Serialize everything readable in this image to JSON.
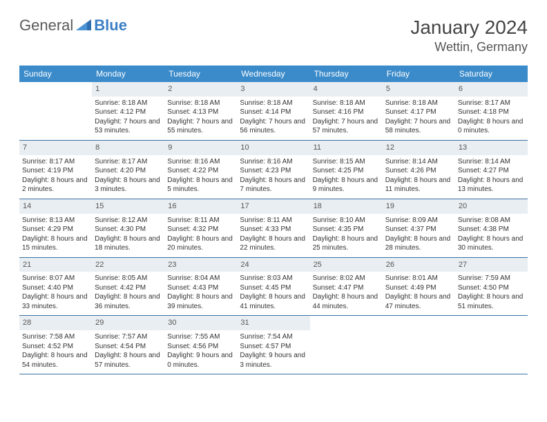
{
  "brand": {
    "part1": "General",
    "part2": "Blue"
  },
  "title": "January 2024",
  "location": "Wettin, Germany",
  "colors": {
    "header_bg": "#3b8bca",
    "daynum_bg": "#e9eef2",
    "rule": "#3b6fa0"
  },
  "dow": [
    "Sunday",
    "Monday",
    "Tuesday",
    "Wednesday",
    "Thursday",
    "Friday",
    "Saturday"
  ],
  "weeks": [
    [
      {
        "n": "",
        "sr": "",
        "ss": "",
        "dl": ""
      },
      {
        "n": "1",
        "sr": "Sunrise: 8:18 AM",
        "ss": "Sunset: 4:12 PM",
        "dl": "Daylight: 7 hours and 53 minutes."
      },
      {
        "n": "2",
        "sr": "Sunrise: 8:18 AM",
        "ss": "Sunset: 4:13 PM",
        "dl": "Daylight: 7 hours and 55 minutes."
      },
      {
        "n": "3",
        "sr": "Sunrise: 8:18 AM",
        "ss": "Sunset: 4:14 PM",
        "dl": "Daylight: 7 hours and 56 minutes."
      },
      {
        "n": "4",
        "sr": "Sunrise: 8:18 AM",
        "ss": "Sunset: 4:16 PM",
        "dl": "Daylight: 7 hours and 57 minutes."
      },
      {
        "n": "5",
        "sr": "Sunrise: 8:18 AM",
        "ss": "Sunset: 4:17 PM",
        "dl": "Daylight: 7 hours and 58 minutes."
      },
      {
        "n": "6",
        "sr": "Sunrise: 8:17 AM",
        "ss": "Sunset: 4:18 PM",
        "dl": "Daylight: 8 hours and 0 minutes."
      }
    ],
    [
      {
        "n": "7",
        "sr": "Sunrise: 8:17 AM",
        "ss": "Sunset: 4:19 PM",
        "dl": "Daylight: 8 hours and 2 minutes."
      },
      {
        "n": "8",
        "sr": "Sunrise: 8:17 AM",
        "ss": "Sunset: 4:20 PM",
        "dl": "Daylight: 8 hours and 3 minutes."
      },
      {
        "n": "9",
        "sr": "Sunrise: 8:16 AM",
        "ss": "Sunset: 4:22 PM",
        "dl": "Daylight: 8 hours and 5 minutes."
      },
      {
        "n": "10",
        "sr": "Sunrise: 8:16 AM",
        "ss": "Sunset: 4:23 PM",
        "dl": "Daylight: 8 hours and 7 minutes."
      },
      {
        "n": "11",
        "sr": "Sunrise: 8:15 AM",
        "ss": "Sunset: 4:25 PM",
        "dl": "Daylight: 8 hours and 9 minutes."
      },
      {
        "n": "12",
        "sr": "Sunrise: 8:14 AM",
        "ss": "Sunset: 4:26 PM",
        "dl": "Daylight: 8 hours and 11 minutes."
      },
      {
        "n": "13",
        "sr": "Sunrise: 8:14 AM",
        "ss": "Sunset: 4:27 PM",
        "dl": "Daylight: 8 hours and 13 minutes."
      }
    ],
    [
      {
        "n": "14",
        "sr": "Sunrise: 8:13 AM",
        "ss": "Sunset: 4:29 PM",
        "dl": "Daylight: 8 hours and 15 minutes."
      },
      {
        "n": "15",
        "sr": "Sunrise: 8:12 AM",
        "ss": "Sunset: 4:30 PM",
        "dl": "Daylight: 8 hours and 18 minutes."
      },
      {
        "n": "16",
        "sr": "Sunrise: 8:11 AM",
        "ss": "Sunset: 4:32 PM",
        "dl": "Daylight: 8 hours and 20 minutes."
      },
      {
        "n": "17",
        "sr": "Sunrise: 8:11 AM",
        "ss": "Sunset: 4:33 PM",
        "dl": "Daylight: 8 hours and 22 minutes."
      },
      {
        "n": "18",
        "sr": "Sunrise: 8:10 AM",
        "ss": "Sunset: 4:35 PM",
        "dl": "Daylight: 8 hours and 25 minutes."
      },
      {
        "n": "19",
        "sr": "Sunrise: 8:09 AM",
        "ss": "Sunset: 4:37 PM",
        "dl": "Daylight: 8 hours and 28 minutes."
      },
      {
        "n": "20",
        "sr": "Sunrise: 8:08 AM",
        "ss": "Sunset: 4:38 PM",
        "dl": "Daylight: 8 hours and 30 minutes."
      }
    ],
    [
      {
        "n": "21",
        "sr": "Sunrise: 8:07 AM",
        "ss": "Sunset: 4:40 PM",
        "dl": "Daylight: 8 hours and 33 minutes."
      },
      {
        "n": "22",
        "sr": "Sunrise: 8:05 AM",
        "ss": "Sunset: 4:42 PM",
        "dl": "Daylight: 8 hours and 36 minutes."
      },
      {
        "n": "23",
        "sr": "Sunrise: 8:04 AM",
        "ss": "Sunset: 4:43 PM",
        "dl": "Daylight: 8 hours and 39 minutes."
      },
      {
        "n": "24",
        "sr": "Sunrise: 8:03 AM",
        "ss": "Sunset: 4:45 PM",
        "dl": "Daylight: 8 hours and 41 minutes."
      },
      {
        "n": "25",
        "sr": "Sunrise: 8:02 AM",
        "ss": "Sunset: 4:47 PM",
        "dl": "Daylight: 8 hours and 44 minutes."
      },
      {
        "n": "26",
        "sr": "Sunrise: 8:01 AM",
        "ss": "Sunset: 4:49 PM",
        "dl": "Daylight: 8 hours and 47 minutes."
      },
      {
        "n": "27",
        "sr": "Sunrise: 7:59 AM",
        "ss": "Sunset: 4:50 PM",
        "dl": "Daylight: 8 hours and 51 minutes."
      }
    ],
    [
      {
        "n": "28",
        "sr": "Sunrise: 7:58 AM",
        "ss": "Sunset: 4:52 PM",
        "dl": "Daylight: 8 hours and 54 minutes."
      },
      {
        "n": "29",
        "sr": "Sunrise: 7:57 AM",
        "ss": "Sunset: 4:54 PM",
        "dl": "Daylight: 8 hours and 57 minutes."
      },
      {
        "n": "30",
        "sr": "Sunrise: 7:55 AM",
        "ss": "Sunset: 4:56 PM",
        "dl": "Daylight: 9 hours and 0 minutes."
      },
      {
        "n": "31",
        "sr": "Sunrise: 7:54 AM",
        "ss": "Sunset: 4:57 PM",
        "dl": "Daylight: 9 hours and 3 minutes."
      },
      {
        "n": "",
        "sr": "",
        "ss": "",
        "dl": ""
      },
      {
        "n": "",
        "sr": "",
        "ss": "",
        "dl": ""
      },
      {
        "n": "",
        "sr": "",
        "ss": "",
        "dl": ""
      }
    ]
  ]
}
